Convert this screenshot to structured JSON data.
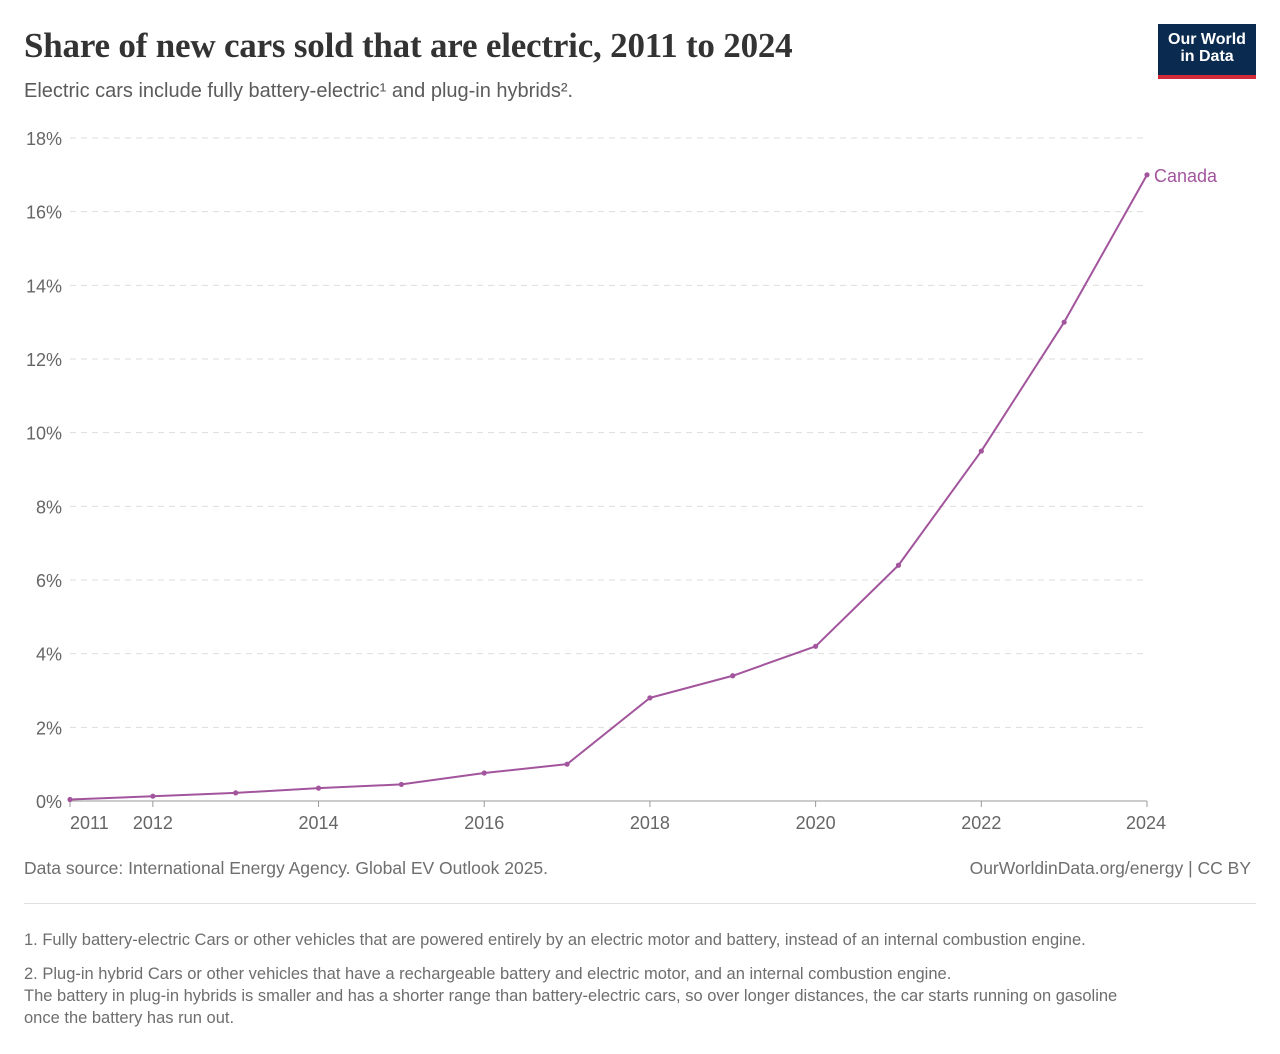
{
  "header": {
    "title": "Share of new cars sold that are electric, 2011 to 2024",
    "subtitle": "Electric cars include fully battery-electric¹ and plug-in hybrids²."
  },
  "logo": {
    "line1": "Our World",
    "line2": "in Data"
  },
  "chart_data": {
    "type": "line",
    "title": "Share of new cars sold that are electric, 2011 to 2024",
    "xlabel": "",
    "ylabel": "",
    "xlim": [
      2011,
      2024
    ],
    "ylim": [
      0,
      18
    ],
    "y_ticks": [
      0,
      2,
      4,
      6,
      8,
      10,
      12,
      14,
      16,
      18
    ],
    "y_tick_labels": [
      "0%",
      "2%",
      "4%",
      "6%",
      "8%",
      "10%",
      "12%",
      "14%",
      "16%",
      "18%"
    ],
    "x_ticks": [
      2011,
      2012,
      2014,
      2016,
      2018,
      2020,
      2022,
      2024
    ],
    "x_tick_labels": [
      "2011",
      "2012",
      "2014",
      "2016",
      "2018",
      "2020",
      "2022",
      "2024"
    ],
    "grid": "horizontal dashed",
    "series": [
      {
        "name": "Canada",
        "color": "#a2559c",
        "x": [
          2011,
          2012,
          2013,
          2014,
          2015,
          2016,
          2017,
          2018,
          2019,
          2020,
          2021,
          2022,
          2023,
          2024
        ],
        "values": [
          0.04,
          0.13,
          0.22,
          0.35,
          0.45,
          0.76,
          1.0,
          2.8,
          3.4,
          4.2,
          6.4,
          9.5,
          13.0,
          17.0
        ]
      }
    ]
  },
  "footer": {
    "source": "Data source: International Energy Agency. Global EV Outlook 2025.",
    "credit": "OurWorldinData.org/energy | CC BY"
  },
  "notes": {
    "note1": "1. Fully battery-electric Cars or other vehicles that are powered entirely by an electric motor and battery, instead of an internal combustion engine.",
    "note2_line1": "2. Plug-in hybrid Cars or other vehicles that have a rechargeable battery and electric motor, and an internal combustion engine.",
    "note2_line2": "The battery in plug-in hybrids is smaller and has a shorter range than battery-electric cars, so over longer distances, the car starts running on gasoline",
    "note2_line3": "once the battery has run out."
  }
}
